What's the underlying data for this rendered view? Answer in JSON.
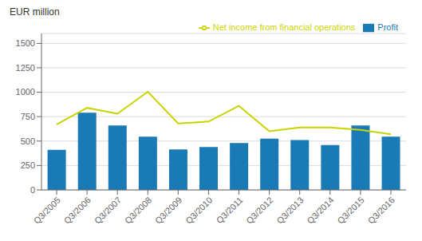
{
  "chart_data": {
    "type": "bar",
    "ylabel": "EUR million",
    "categories": [
      "Q3/2005",
      "Q3/2006",
      "Q3/2007",
      "Q3/2008",
      "Q3/2009",
      "Q3/2010",
      "Q3/2011",
      "Q3/2012",
      "Q3/2013",
      "Q3/2014",
      "Q3/2015",
      "Q3/2016"
    ],
    "series": [
      {
        "name": "Profit",
        "type": "bar",
        "color": "#1a7ab5",
        "values": [
          410,
          790,
          660,
          545,
          415,
          440,
          480,
          525,
          510,
          460,
          660,
          545
        ]
      },
      {
        "name": "Net income from financial operations",
        "type": "line",
        "color": "#c8d400",
        "values": [
          670,
          840,
          780,
          1005,
          680,
          700,
          860,
          600,
          640,
          640,
          615,
          570
        ]
      }
    ],
    "ylim": [
      0,
      1600
    ],
    "yticks": [
      0,
      250,
      500,
      750,
      1000,
      1250,
      1500
    ],
    "grid": true,
    "legend": "upper right"
  }
}
